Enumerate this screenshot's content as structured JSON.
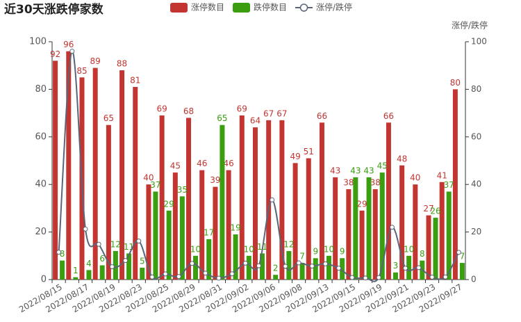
{
  "chart_data": {
    "type": "bar-line",
    "title": "近30天涨跌停家数",
    "categories": [
      "2022/08/15",
      null,
      "2022/08/17",
      null,
      "2022/08/19",
      null,
      "2022/08/23",
      null,
      "2022/08/25",
      null,
      "2022/08/29",
      null,
      "2022/08/31",
      null,
      "2022/09/02",
      null,
      "2022/09/06",
      null,
      "2022/09/08",
      null,
      "2022/09/13",
      null,
      "2022/09/15",
      null,
      "2022/09/19",
      null,
      "2022/09/21",
      null,
      "2022/09/23",
      null,
      "2022/09/27"
    ],
    "series": [
      {
        "name": "涨停数目",
        "type": "bar",
        "color": "#c23531",
        "values": [
          92,
          96,
          85,
          89,
          65,
          88,
          81,
          40,
          69,
          45,
          68,
          46,
          39,
          46,
          69,
          64,
          67,
          67,
          49,
          51,
          66,
          43,
          38,
          29,
          38,
          66,
          48,
          40,
          27,
          41,
          80
        ]
      },
      {
        "name": "跌停数目",
        "type": "bar",
        "color": "#3a9e10",
        "values": [
          8,
          1,
          4,
          6,
          12,
          11,
          5,
          37,
          29,
          35,
          10,
          17,
          65,
          19,
          10,
          11,
          2,
          12,
          7,
          9,
          10,
          9,
          43,
          43,
          45,
          3,
          10,
          8,
          26,
          37,
          7
        ]
      },
      {
        "name": "涨停/跌停",
        "type": "line",
        "axis": "y2",
        "color": "#5b6578",
        "values": [
          11.5,
          96,
          21.25,
          14.83,
          5.42,
          8,
          16.2,
          1.08,
          2.38,
          1.29,
          6.8,
          2.71,
          0.6,
          2.42,
          6.9,
          5.82,
          33.5,
          5.58,
          7,
          5.67,
          6.6,
          4.78,
          0.88,
          0.67,
          0.84,
          22,
          4.8,
          5,
          1.04,
          1.11,
          11.43
        ]
      }
    ],
    "y2_label": "涨停/跌停",
    "ylim": [
      0,
      100
    ],
    "yticks": [
      0,
      20,
      40,
      60,
      80,
      100
    ],
    "y2lim": [
      0,
      100
    ],
    "y2ticks": [
      0,
      20,
      40,
      60,
      80,
      100
    ],
    "grid": false
  }
}
